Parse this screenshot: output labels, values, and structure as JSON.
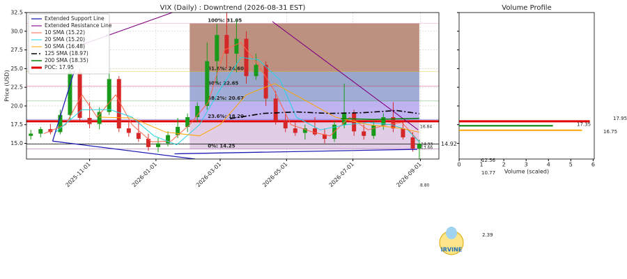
{
  "chart_data": [
    {
      "type": "candlestick",
      "title": "VIX (Daily) : Downtrend (2026-08-31 EST)",
      "ylabel": "Price (USD)",
      "xlim": [
        "2025-09-04",
        "2026-09-18"
      ],
      "ylim": [
        12.9,
        32.5
      ],
      "xticks": [
        "2025-11-01",
        "2026-01-01",
        "2026-03-01",
        "2026-05-01",
        "2026-07-01",
        "2026-09-01"
      ],
      "yticks": [
        {
          "value": 15,
          "label": "15.0"
        },
        {
          "value": 17.5,
          "label": "17.5"
        },
        {
          "value": 20,
          "label": "20.0"
        },
        {
          "value": 22.5,
          "label": "22.5"
        },
        {
          "value": 25,
          "label": "25.0"
        },
        {
          "value": 27.5,
          "label": "27.5"
        },
        {
          "value": 30,
          "label": "30.0"
        },
        {
          "value": 32.5,
          "label": "32.5"
        }
      ],
      "grid": true,
      "up_color": "#1a9a1a",
      "down_color": "#d62728",
      "x": [
        "2025-09-08",
        "2025-09-17",
        "2025-09-26",
        "2025-10-05",
        "2025-10-14",
        "2025-10-23",
        "2025-11-01",
        "2025-11-10",
        "2025-11-19",
        "2025-11-28",
        "2025-12-07",
        "2025-12-16",
        "2025-12-25",
        "2026-01-03",
        "2026-01-12",
        "2026-01-21",
        "2026-01-30",
        "2026-02-08",
        "2026-02-17",
        "2026-02-26",
        "2026-03-07",
        "2026-03-16",
        "2026-03-25",
        "2026-04-03",
        "2026-04-12",
        "2026-04-21",
        "2026-04-30",
        "2026-05-09",
        "2026-05-18",
        "2026-05-27",
        "2026-06-05",
        "2026-06-14",
        "2026-06-23",
        "2026-07-02",
        "2026-07-11",
        "2026-07-20",
        "2026-07-29",
        "2026-08-07",
        "2026-08-16",
        "2026-08-25",
        "2026-08-31"
      ],
      "open": [
        16.0,
        16.3,
        16.9,
        16.5,
        18.8,
        24.5,
        18.4,
        17.6,
        19.2,
        23.6,
        17.0,
        16.4,
        15.6,
        14.5,
        15.0,
        16.1,
        17.2,
        18.5,
        20.0,
        26.0,
        29.5,
        27.0,
        29.0,
        24.0,
        25.5,
        21.0,
        18.0,
        17.0,
        16.4,
        17.0,
        16.2,
        15.6,
        17.5,
        19.0,
        16.6,
        16.0,
        17.4,
        18.5,
        17.0,
        15.8,
        14.3
      ],
      "high": [
        16.8,
        17.2,
        17.6,
        19.5,
        28.9,
        25.0,
        20.5,
        19.8,
        27.5,
        24.0,
        18.0,
        17.9,
        16.3,
        15.8,
        16.6,
        18.4,
        19.0,
        20.5,
        28.5,
        31.0,
        32.5,
        31.5,
        30.0,
        27.0,
        26.0,
        22.0,
        18.9,
        17.8,
        17.5,
        18.5,
        17.0,
        18.0,
        23.0,
        19.5,
        17.5,
        18.0,
        19.0,
        20.5,
        18.0,
        16.5,
        15.5
      ],
      "low": [
        15.5,
        15.8,
        16.2,
        16.2,
        18.0,
        17.8,
        17.0,
        16.9,
        18.8,
        16.5,
        15.9,
        15.2,
        14.0,
        13.8,
        14.6,
        15.7,
        16.5,
        17.8,
        19.5,
        23.0,
        25.0,
        24.5,
        23.0,
        23.5,
        20.0,
        17.5,
        16.5,
        16.0,
        15.5,
        16.0,
        15.0,
        15.2,
        17.0,
        16.0,
        15.5,
        15.6,
        16.8,
        16.5,
        15.5,
        13.9,
        12.9
      ],
      "close": [
        16.3,
        16.9,
        16.5,
        18.8,
        24.5,
        18.4,
        17.6,
        19.2,
        23.6,
        17.0,
        16.4,
        15.6,
        14.5,
        15.0,
        16.1,
        17.2,
        18.5,
        20.0,
        26.0,
        29.5,
        27.0,
        29.0,
        24.0,
        25.5,
        21.0,
        18.0,
        17.0,
        16.4,
        17.0,
        16.2,
        15.6,
        17.5,
        19.0,
        16.6,
        16.0,
        17.4,
        18.5,
        17.0,
        15.8,
        14.3,
        14.92
      ],
      "fib": {
        "start": "2026-02-01",
        "end": "2026-08-31",
        "levels": [
          {
            "label": "0%: 14.25",
            "value": 14.25,
            "color": "#800080"
          },
          {
            "label": "23.6%: 18.20",
            "value": 18.2,
            "color": "#0000cd"
          },
          {
            "label": "38.2%: 20.67",
            "value": 20.67,
            "color": "#228b22"
          },
          {
            "label": "50%: 22.65",
            "value": 22.65,
            "color": "#dc143c"
          },
          {
            "label": "61.8%: 24.60",
            "value": 24.6,
            "color": "#e6b800"
          },
          {
            "label": "100%: 31.05",
            "value": 31.05,
            "color": "#ff69b4"
          }
        ],
        "band_colors": [
          "#dcc6e2",
          "#b5a6ee",
          "#909fd0",
          "#8a96c2",
          "#b07e6a"
        ]
      },
      "last_close": {
        "value": 14.92,
        "color": "#000000"
      },
      "lines": [
        {
          "name": "Extended Support Line",
          "color": "#1f1fb4",
          "width": 1.3,
          "x": [
            "2025-09-28",
            "2026-02-06",
            "2026-02-06",
            "2026-01-18",
            "2026-08-29",
            "2026-08-29",
            "2025-09-28",
            "2025-10-18"
          ],
          "values": [
            15.3,
            12.9,
            null,
            13.6,
            14.2,
            null,
            15.3,
            24.7
          ]
        },
        {
          "name": "Extended Resistance Line",
          "color": "#800080",
          "width": 1.1,
          "x": [
            "2025-10-19",
            "2026-01-16",
            "2026-01-16",
            "2026-04-18",
            "2026-08-30"
          ],
          "values": [
            27.9,
            32.5,
            null,
            31.3,
            16.8
          ]
        },
        {
          "name": "10 SMA (15.22)",
          "color": "#ff6347",
          "width": 1,
          "x": [
            "2025-09-20",
            "2025-10-10",
            "2025-10-25",
            "2025-11-08",
            "2025-11-25",
            "2025-12-10",
            "2025-12-28",
            "2026-01-15",
            "2026-02-01",
            "2026-02-18",
            "2026-03-05",
            "2026-03-20",
            "2026-04-05",
            "2026-04-20",
            "2026-05-05",
            "2026-05-25",
            "2026-06-10",
            "2026-06-28",
            "2026-07-15",
            "2026-08-01",
            "2026-08-15",
            "2026-08-31"
          ],
          "values": [
            16.3,
            17.5,
            21.5,
            18.5,
            21.5,
            17.5,
            15.2,
            15.3,
            17.5,
            20.5,
            27.5,
            28.5,
            25.5,
            22.0,
            17.5,
            16.5,
            16.0,
            18.5,
            16.8,
            17.5,
            17.8,
            15.22
          ]
        },
        {
          "name": "20 SMA (15.20)",
          "color": "#22d3e6",
          "width": 1,
          "x": [
            "2025-10-01",
            "2025-10-25",
            "2025-11-20",
            "2025-12-10",
            "2025-12-30",
            "2026-01-20",
            "2026-02-10",
            "2026-02-28",
            "2026-03-20",
            "2026-04-05",
            "2026-04-25",
            "2026-05-10",
            "2026-06-01",
            "2026-06-25",
            "2026-07-15",
            "2026-08-05",
            "2026-08-20",
            "2026-08-31"
          ],
          "values": [
            16.5,
            19.5,
            19.5,
            18.5,
            16.0,
            14.8,
            17.5,
            22.0,
            26.5,
            26.2,
            23.5,
            18.5,
            16.8,
            17.5,
            17.8,
            17.5,
            16.8,
            15.2
          ]
        },
        {
          "name": "50 SMA (16.48)",
          "color": "#ffa500",
          "width": 1,
          "x": [
            "2025-11-10",
            "2025-12-10",
            "2026-01-10",
            "2026-02-10",
            "2026-03-01",
            "2026-03-25",
            "2026-04-20",
            "2026-05-15",
            "2026-06-15",
            "2026-07-15",
            "2026-08-15",
            "2026-08-31"
          ],
          "values": [
            18.5,
            18.4,
            16.5,
            16.0,
            17.5,
            21.5,
            23.0,
            21.0,
            18.5,
            17.5,
            17.0,
            16.48
          ]
        },
        {
          "name": "125 SMA (18.97)",
          "color": "#000000",
          "width": 1.6,
          "dash": "8 3 2 3",
          "x": [
            "2026-03-10",
            "2026-04-10",
            "2026-05-10",
            "2026-06-10",
            "2026-07-10",
            "2026-08-10",
            "2026-08-31"
          ],
          "values": [
            18.3,
            19.0,
            19.2,
            19.0,
            19.1,
            19.4,
            18.97
          ]
        },
        {
          "name": "200 SMA (18.35)",
          "color": "#008000",
          "width": 1.5,
          "x": [
            "2026-06-20",
            "2026-07-20",
            "2026-08-31"
          ],
          "values": [
            18.3,
            18.2,
            18.35
          ]
        },
        {
          "name": "POC: 17.95",
          "color": "#e00000",
          "width": 3,
          "value": 17.95
        }
      ],
      "annotations": [
        {
          "text": "16.84",
          "color": "#8b008b"
        },
        {
          "text": "14.33",
          "color": "#8b008b"
        },
        {
          "text": "13.66",
          "color": "#0000cd"
        },
        {
          "text": "8.80",
          "color": "#0000cd"
        }
      ]
    },
    {
      "type": "barh",
      "title": "Volume Profile",
      "xlabel": "Volume (scaled)",
      "xlim": [
        0,
        6.05
      ],
      "xticks": [
        0,
        1,
        2,
        3,
        4,
        5,
        6
      ],
      "prices": [
        17.95,
        17.35,
        16.75
      ],
      "values": [
        5.85,
        4.2,
        5.5
      ],
      "colors": [
        "#e00000",
        "#008000",
        "#ffa500"
      ],
      "annotations": [
        {
          "text": "12.56",
          "color": "#8b008b"
        },
        {
          "text": "10.77",
          "color": "#22d3e6"
        },
        {
          "text": "2.39",
          "color": "#0000cd"
        }
      ]
    }
  ],
  "logo_text": "IRVINE"
}
